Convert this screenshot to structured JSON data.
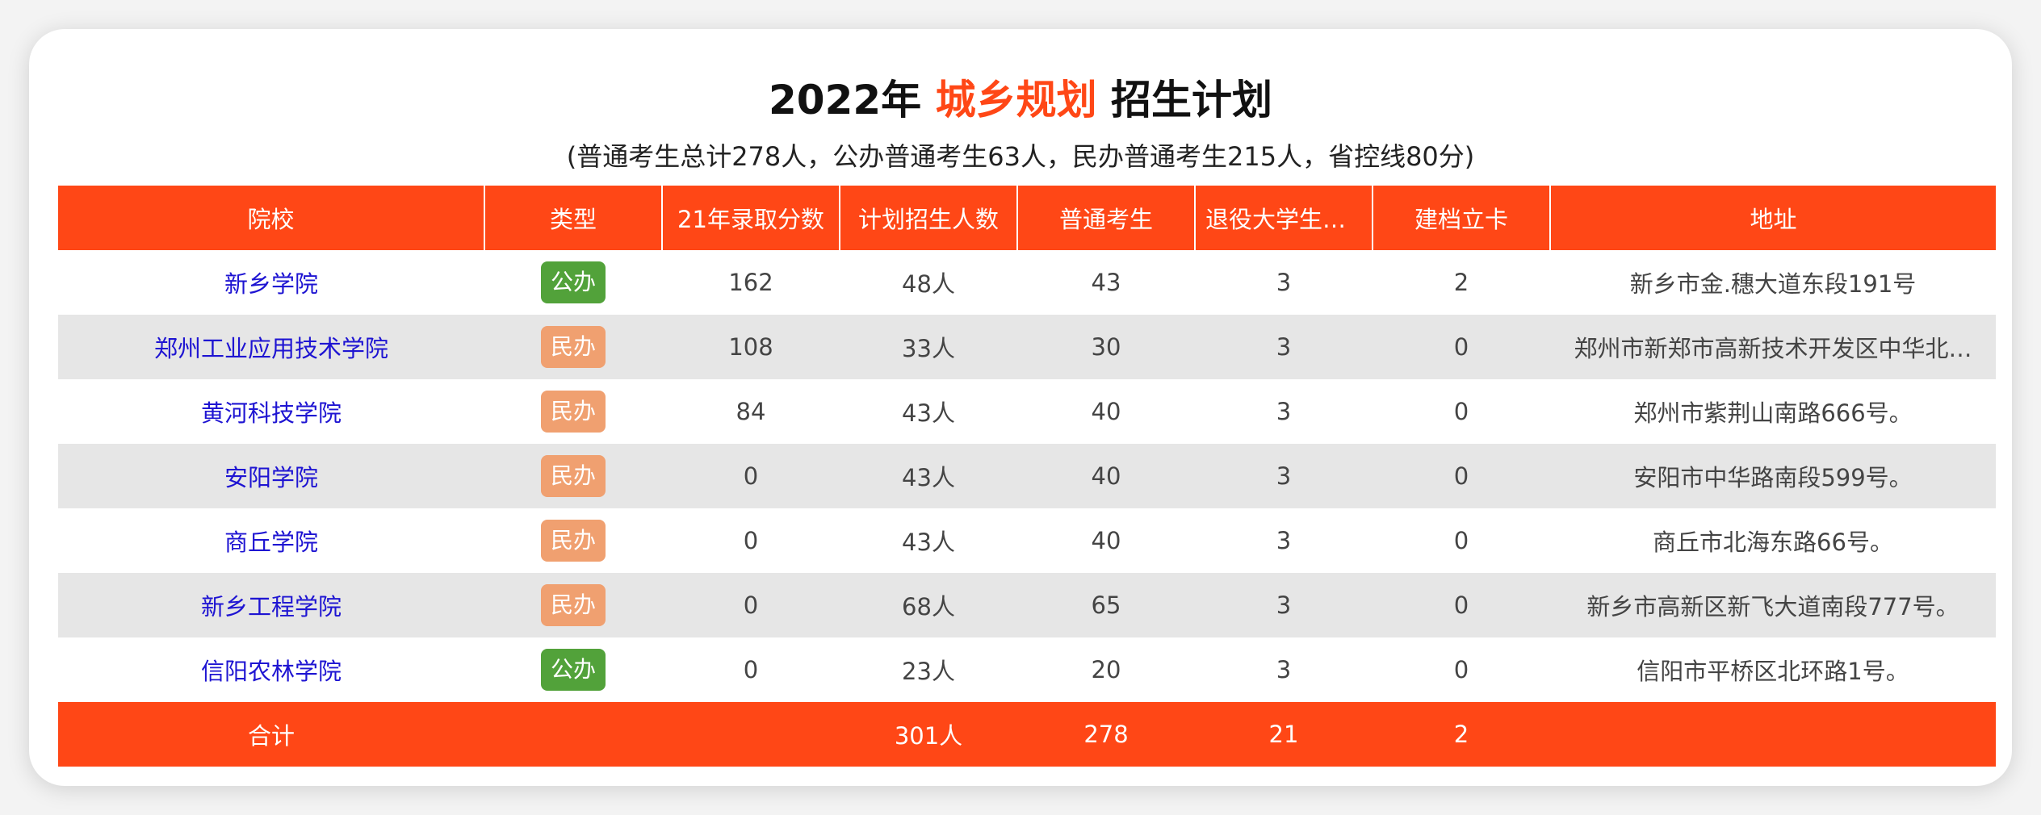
{
  "title": {
    "year": "2022年",
    "major": "城乡规划",
    "suffix": "招生计划"
  },
  "subtitle": "(普通考生总计278人，公办普通考生63人，民办普通考生215人，省控线80分)",
  "colors": {
    "accent": "#ff4716",
    "public_tag": "#52a23a",
    "private_tag": "#f0a070",
    "school_link": "#1e14d2"
  },
  "table": {
    "headers": [
      "院校",
      "类型",
      "21年录取分数",
      "计划招生人数",
      "普通考生",
      "退役大学生士兵",
      "建档立卡",
      "地址"
    ],
    "rows": [
      {
        "school": "新乡学院",
        "type": "公办",
        "type_kind": "public",
        "score": "162",
        "plan": "48人",
        "regular": "43",
        "veteran": "3",
        "poverty": "2",
        "address": "新乡市金.穗大道东段191号"
      },
      {
        "school": "郑州工业应用技术学院",
        "type": "民办",
        "type_kind": "private",
        "score": "108",
        "plan": "33人",
        "regular": "30",
        "veteran": "3",
        "poverty": "0",
        "address": "郑州市新郑市高新技术开发区中华北…"
      },
      {
        "school": "黄河科技学院",
        "type": "民办",
        "type_kind": "private",
        "score": "84",
        "plan": "43人",
        "regular": "40",
        "veteran": "3",
        "poverty": "0",
        "address": "郑州市紫荆山南路666号。"
      },
      {
        "school": "安阳学院",
        "type": "民办",
        "type_kind": "private",
        "score": "0",
        "plan": "43人",
        "regular": "40",
        "veteran": "3",
        "poverty": "0",
        "address": "安阳市中华路南段599号。"
      },
      {
        "school": "商丘学院",
        "type": "民办",
        "type_kind": "private",
        "score": "0",
        "plan": "43人",
        "regular": "40",
        "veteran": "3",
        "poverty": "0",
        "address": "商丘市北海东路66号。"
      },
      {
        "school": "新乡工程学院",
        "type": "民办",
        "type_kind": "private",
        "score": "0",
        "plan": "68人",
        "regular": "65",
        "veteran": "3",
        "poverty": "0",
        "address": "新乡市高新区新飞大道南段777号。"
      },
      {
        "school": "信阳农林学院",
        "type": "公办",
        "type_kind": "public",
        "score": "0",
        "plan": "23人",
        "regular": "20",
        "veteran": "3",
        "poverty": "0",
        "address": "信阳市平桥区北环路1号。"
      }
    ],
    "total": {
      "label": "合计",
      "plan": "301人",
      "regular": "278",
      "veteran": "21",
      "poverty": "2"
    }
  }
}
